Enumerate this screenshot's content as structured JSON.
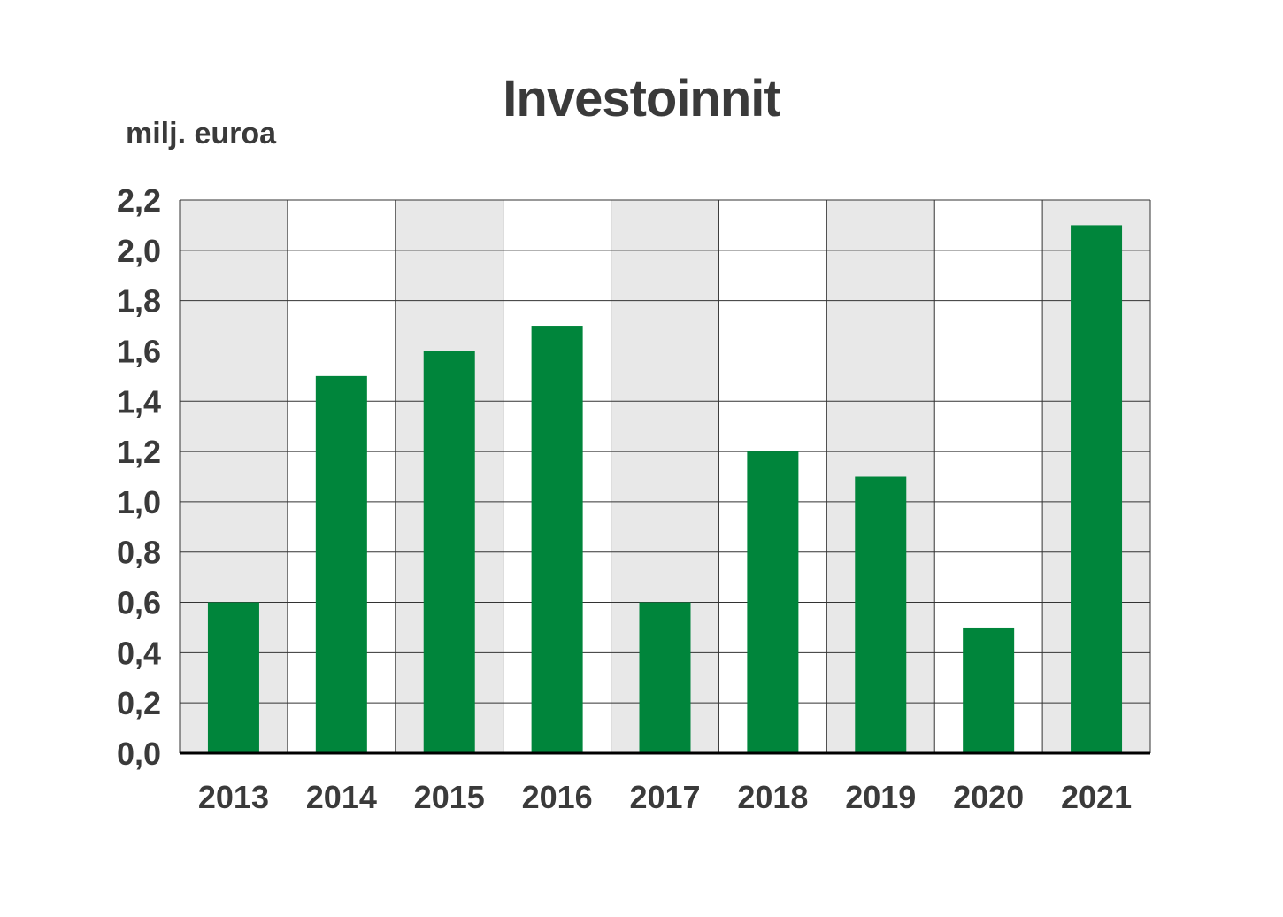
{
  "chart_data": {
    "type": "bar",
    "title": "Investoinnit",
    "ylabel": "milj. euroa",
    "xlabel": "",
    "categories": [
      "2013",
      "2014",
      "2015",
      "2016",
      "2017",
      "2018",
      "2019",
      "2020",
      "2021"
    ],
    "values": [
      0.6,
      1.5,
      1.6,
      1.7,
      0.6,
      1.2,
      1.1,
      0.5,
      2.1
    ],
    "ylim": [
      0,
      2.2
    ],
    "yticks": [
      "0,0",
      "0,2",
      "0,4",
      "0,6",
      "0,8",
      "1,0",
      "1,2",
      "1,4",
      "1,6",
      "1,8",
      "2,0",
      "2,2"
    ],
    "grid": true,
    "legend": "none",
    "colors": {
      "bar": "#00853b",
      "band_shaded": "#e8e8e8",
      "band_plain": "#ffffff",
      "grid": "#333333",
      "text": "#3a3a3a"
    }
  }
}
